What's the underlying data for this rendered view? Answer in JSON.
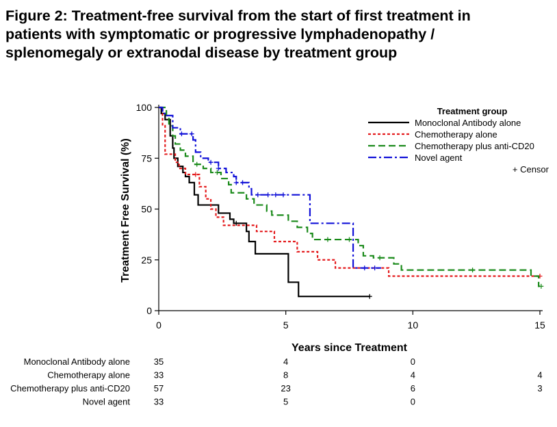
{
  "figure": {
    "title_lines": [
      "Figure 2: Treatment-free survival from the start of first treatment in",
      "patients with symptomatic or progressive lymphadenopathy /",
      "splenomegaly or extranodal disease by treatment group"
    ]
  },
  "chart_data": {
    "type": "line",
    "subtype": "kaplan-meier step",
    "xlabel": "Years since Treatment",
    "ylabel": "Treatment Free Survival (%)",
    "xlim": [
      0,
      15
    ],
    "ylim": [
      0,
      100
    ],
    "xticks": [
      0,
      5,
      10,
      15
    ],
    "yticks": [
      0,
      25,
      50,
      75,
      100
    ],
    "legend": {
      "title": "Treatment group",
      "placement": "top-right",
      "censor_label": "+ Censor"
    },
    "series": [
      {
        "name": "Monoclonal Antibody alone",
        "color": "#000000",
        "dash": "solid",
        "points": [
          [
            0,
            100
          ],
          [
            0.1,
            97
          ],
          [
            0.25,
            94
          ],
          [
            0.45,
            86
          ],
          [
            0.55,
            80
          ],
          [
            0.6,
            75
          ],
          [
            0.75,
            71
          ],
          [
            0.95,
            68
          ],
          [
            1.05,
            66
          ],
          [
            1.2,
            63
          ],
          [
            1.4,
            57
          ],
          [
            1.55,
            52
          ],
          [
            2.1,
            52
          ],
          [
            2.35,
            48
          ],
          [
            2.8,
            45
          ],
          [
            2.95,
            43
          ],
          [
            3.45,
            39
          ],
          [
            3.55,
            34
          ],
          [
            3.8,
            28
          ],
          [
            5.1,
            14
          ],
          [
            5.5,
            7
          ],
          [
            8.3,
            7
          ]
        ],
        "censors": [
          [
            3.05,
            43
          ],
          [
            8.3,
            7
          ]
        ]
      },
      {
        "name": "Chemotherapy alone",
        "color": "#e41a1c",
        "dash": "4,3",
        "points": [
          [
            0,
            100
          ],
          [
            0.15,
            91
          ],
          [
            0.25,
            77
          ],
          [
            0.55,
            77
          ],
          [
            0.65,
            73
          ],
          [
            0.8,
            70
          ],
          [
            1.05,
            67
          ],
          [
            1.6,
            61
          ],
          [
            1.85,
            55
          ],
          [
            2.05,
            50
          ],
          [
            2.25,
            46
          ],
          [
            2.55,
            42
          ],
          [
            3.85,
            39
          ],
          [
            4.55,
            34
          ],
          [
            5.45,
            29
          ],
          [
            6.25,
            25
          ],
          [
            6.95,
            21
          ],
          [
            9.05,
            17
          ],
          [
            15,
            17
          ]
        ],
        "censors": [
          [
            1.45,
            67
          ],
          [
            15,
            17
          ]
        ]
      },
      {
        "name": "Chemotherapy plus anti-CD20",
        "color": "#1a8a1a",
        "dash": "10,5",
        "points": [
          [
            0,
            100
          ],
          [
            0.3,
            96
          ],
          [
            0.4,
            91
          ],
          [
            0.55,
            86
          ],
          [
            0.65,
            82
          ],
          [
            0.85,
            79
          ],
          [
            1.05,
            76
          ],
          [
            1.35,
            72
          ],
          [
            1.75,
            70
          ],
          [
            2.05,
            68
          ],
          [
            2.45,
            65
          ],
          [
            2.75,
            62
          ],
          [
            2.85,
            58
          ],
          [
            3.45,
            55
          ],
          [
            3.75,
            52
          ],
          [
            4.25,
            49
          ],
          [
            4.45,
            47
          ],
          [
            5.1,
            44
          ],
          [
            5.45,
            41
          ],
          [
            5.85,
            38
          ],
          [
            6.05,
            35
          ],
          [
            7.85,
            32
          ],
          [
            8.05,
            27
          ],
          [
            8.45,
            26
          ],
          [
            9.25,
            23
          ],
          [
            9.55,
            20
          ],
          [
            14.6,
            20
          ],
          [
            14.65,
            17
          ],
          [
            14.95,
            12
          ],
          [
            15,
            12
          ]
        ],
        "censors": [
          [
            1.5,
            72
          ],
          [
            2.3,
            68
          ],
          [
            6.65,
            35
          ],
          [
            7.5,
            35
          ],
          [
            8.7,
            26
          ],
          [
            12.35,
            20
          ],
          [
            15.05,
            12
          ]
        ]
      },
      {
        "name": "Novel agent",
        "color": "#1010d8",
        "dash": "12,4,3,4",
        "points": [
          [
            0,
            100
          ],
          [
            0.15,
            97
          ],
          [
            0.3,
            96
          ],
          [
            0.55,
            90
          ],
          [
            0.85,
            87
          ],
          [
            1.3,
            87
          ],
          [
            1.35,
            84
          ],
          [
            1.45,
            78
          ],
          [
            1.65,
            75
          ],
          [
            1.95,
            73
          ],
          [
            2.25,
            73
          ],
          [
            2.35,
            70
          ],
          [
            2.65,
            68
          ],
          [
            2.95,
            66
          ],
          [
            3.05,
            63
          ],
          [
            3.45,
            63
          ],
          [
            3.55,
            60
          ],
          [
            3.65,
            57
          ],
          [
            5.95,
            57
          ],
          [
            5.95,
            43
          ],
          [
            7.65,
            43
          ],
          [
            7.65,
            21
          ],
          [
            8.75,
            21
          ]
        ],
        "censors": [
          [
            0.9,
            87
          ],
          [
            1.3,
            87
          ],
          [
            2.05,
            73
          ],
          [
            2.35,
            70
          ],
          [
            3.05,
            63
          ],
          [
            3.3,
            63
          ],
          [
            3.9,
            57
          ],
          [
            4.3,
            57
          ],
          [
            4.6,
            57
          ],
          [
            4.9,
            57
          ],
          [
            8.1,
            21
          ],
          [
            8.5,
            21
          ]
        ]
      }
    ],
    "risk_table": {
      "columns_at_x": [
        0,
        5,
        10,
        15
      ],
      "rows": [
        {
          "label": "Monoclonal Antibody alone",
          "values": [
            "35",
            "4",
            "0",
            ""
          ]
        },
        {
          "label": "Chemotherapy alone",
          "values": [
            "33",
            "8",
            "4",
            "4"
          ]
        },
        {
          "label": "Chemotherapy plus anti-CD20",
          "values": [
            "57",
            "23",
            "6",
            "3"
          ]
        },
        {
          "label": "Novel agent",
          "values": [
            "33",
            "5",
            "0",
            ""
          ]
        }
      ]
    }
  }
}
